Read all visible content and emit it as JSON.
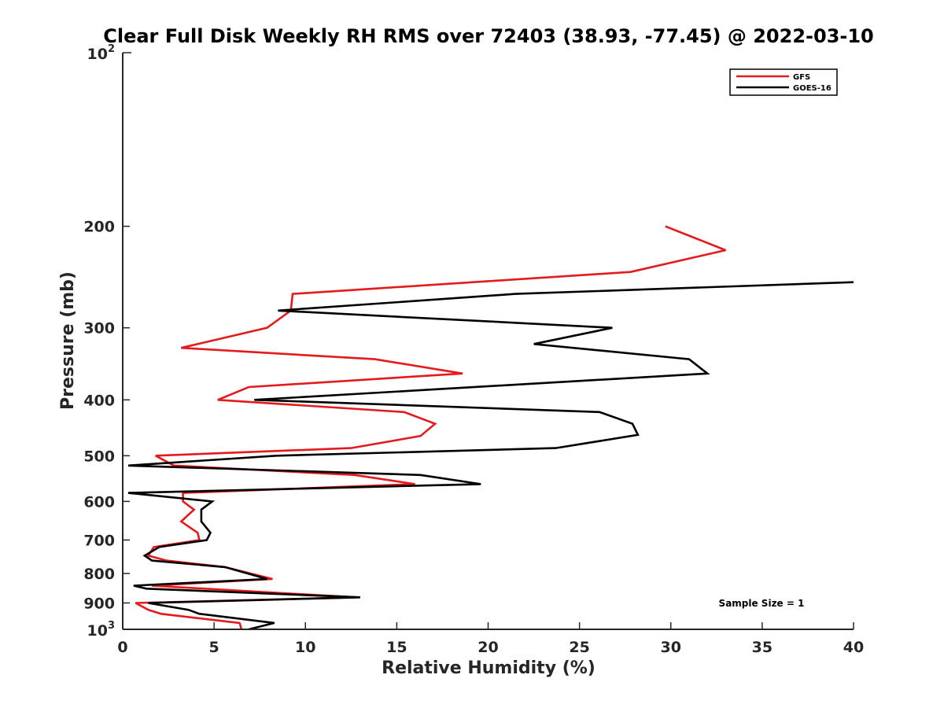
{
  "chart_data": {
    "type": "line",
    "title": "Clear Full Disk Weekly RH RMS over 72403 (38.93, -77.45) @ 2022-03-10",
    "xlabel": "Relative Humidity (%)",
    "ylabel": "Pressure (mb)",
    "xlim": [
      0,
      40
    ],
    "ylim": [
      100,
      1000
    ],
    "y_scale": "log",
    "y_reversed": true,
    "grid": false,
    "x_ticks": [
      0,
      5,
      10,
      15,
      20,
      25,
      30,
      35,
      40
    ],
    "y_ticks": [
      200,
      300,
      400,
      500,
      600,
      700,
      800,
      900
    ],
    "y_tick_powers": [
      {
        "base": "10",
        "exp": "2",
        "value": 100
      },
      {
        "base": "10",
        "exp": "3",
        "value": 1000
      }
    ],
    "legend_position": "top-right",
    "annotation": "Sample Size = 1",
    "series": [
      {
        "name": "GFS",
        "color": "#e41a1c",
        "points": [
          [
            29.7,
            200
          ],
          [
            33.0,
            220
          ],
          [
            27.8,
            240
          ],
          [
            9.3,
            262
          ],
          [
            9.2,
            280
          ],
          [
            7.9,
            300
          ],
          [
            3.2,
            325
          ],
          [
            13.8,
            340
          ],
          [
            18.6,
            360
          ],
          [
            6.9,
            380
          ],
          [
            5.2,
            400
          ],
          [
            15.4,
            420
          ],
          [
            17.1,
            440
          ],
          [
            16.3,
            462
          ],
          [
            12.5,
            485
          ],
          [
            1.8,
            500
          ],
          [
            2.8,
            520
          ],
          [
            12.7,
            540
          ],
          [
            16.0,
            560
          ],
          [
            3.3,
            580
          ],
          [
            3.3,
            600
          ],
          [
            3.9,
            620
          ],
          [
            3.2,
            650
          ],
          [
            4.1,
            680
          ],
          [
            4.2,
            700
          ],
          [
            1.7,
            720
          ],
          [
            1.4,
            745
          ],
          [
            2.4,
            760
          ],
          [
            5.6,
            780
          ],
          [
            8.2,
            818
          ],
          [
            1.6,
            840
          ],
          [
            12.8,
            880
          ],
          [
            0.7,
            900
          ],
          [
            1.4,
            925
          ],
          [
            2.1,
            940
          ],
          [
            6.4,
            975
          ],
          [
            6.5,
            1000
          ]
        ]
      },
      {
        "name": "GOES-16",
        "color": "#000000",
        "points": [
          [
            40.0,
            250
          ],
          [
            21.5,
            262
          ],
          [
            8.5,
            280
          ],
          [
            26.8,
            300
          ],
          [
            22.5,
            320
          ],
          [
            31.0,
            340
          ],
          [
            32.0,
            360
          ],
          [
            7.2,
            400
          ],
          [
            26.1,
            420
          ],
          [
            27.9,
            440
          ],
          [
            28.2,
            460
          ],
          [
            23.7,
            485
          ],
          [
            8.4,
            500
          ],
          [
            0.3,
            520
          ],
          [
            16.3,
            540
          ],
          [
            19.6,
            560
          ],
          [
            0.3,
            580
          ],
          [
            4.9,
            600
          ],
          [
            4.3,
            620
          ],
          [
            4.3,
            650
          ],
          [
            4.8,
            680
          ],
          [
            4.6,
            700
          ],
          [
            2.0,
            720
          ],
          [
            1.2,
            745
          ],
          [
            1.6,
            760
          ],
          [
            5.6,
            780
          ],
          [
            7.9,
            818
          ],
          [
            0.6,
            840
          ],
          [
            1.3,
            850
          ],
          [
            13.0,
            880
          ],
          [
            1.4,
            900
          ],
          [
            3.6,
            925
          ],
          [
            4.2,
            940
          ],
          [
            8.3,
            975
          ],
          [
            6.9,
            1000
          ]
        ]
      }
    ]
  }
}
